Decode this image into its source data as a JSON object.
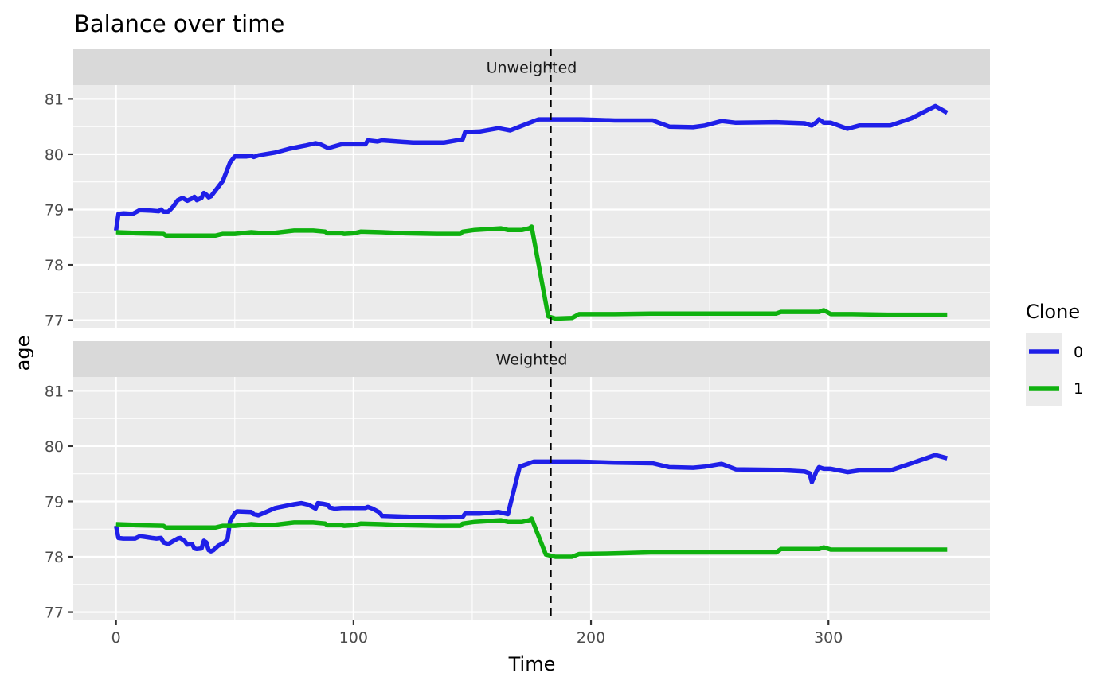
{
  "chart_data": {
    "type": "line",
    "title": "Balance over time",
    "xlabel": "Time",
    "ylabel": "age",
    "xlim": [
      -18,
      368
    ],
    "ylim": [
      76.85,
      81.25
    ],
    "x_ticks": [
      0,
      100,
      200,
      300
    ],
    "y_ticks": [
      77,
      78,
      79,
      80,
      81
    ],
    "grid": true,
    "vline": {
      "x": 183,
      "style": "dashed"
    },
    "legend": {
      "title": "Clone",
      "position": "right",
      "entries": [
        {
          "label": "0",
          "color": "#1f1fe8"
        },
        {
          "label": "1",
          "color": "#0fb10f"
        }
      ]
    },
    "panels": [
      {
        "label": "Unweighted",
        "series": [
          {
            "name": "0",
            "color": "#1f1fe8",
            "points": [
              [
                0,
                78.62
              ],
              [
                1,
                78.92
              ],
              [
                3,
                78.93
              ],
              [
                7,
                78.92
              ],
              [
                10,
                78.99
              ],
              [
                15,
                78.98
              ],
              [
                18,
                78.97
              ],
              [
                19,
                79.0
              ],
              [
                20,
                78.96
              ],
              [
                22,
                78.96
              ],
              [
                24,
                79.05
              ],
              [
                26,
                79.17
              ],
              [
                28,
                79.21
              ],
              [
                30,
                79.16
              ],
              [
                32,
                79.2
              ],
              [
                33,
                79.23
              ],
              [
                34,
                79.17
              ],
              [
                36,
                79.21
              ],
              [
                37,
                79.3
              ],
              [
                38,
                79.27
              ],
              [
                39,
                79.22
              ],
              [
                40,
                79.24
              ],
              [
                42,
                79.35
              ],
              [
                45,
                79.52
              ],
              [
                48,
                79.85
              ],
              [
                50,
                79.96
              ],
              [
                55,
                79.96
              ],
              [
                57,
                79.97
              ],
              [
                58,
                79.95
              ],
              [
                60,
                79.98
              ],
              [
                67,
                80.03
              ],
              [
                73,
                80.1
              ],
              [
                80,
                80.16
              ],
              [
                84,
                80.2
              ],
              [
                86,
                80.18
              ],
              [
                89,
                80.12
              ],
              [
                90,
                80.12
              ],
              [
                95,
                80.18
              ],
              [
                105,
                80.18
              ],
              [
                106,
                80.25
              ],
              [
                110,
                80.23
              ],
              [
                112,
                80.25
              ],
              [
                125,
                80.21
              ],
              [
                138,
                80.21
              ],
              [
                146,
                80.27
              ],
              [
                147,
                80.4
              ],
              [
                153,
                80.41
              ],
              [
                161,
                80.47
              ],
              [
                166,
                80.43
              ],
              [
                170,
                80.5
              ],
              [
                176,
                80.6
              ],
              [
                178,
                80.63
              ],
              [
                183,
                80.63
              ],
              [
                190,
                80.63
              ],
              [
                196,
                80.63
              ],
              [
                210,
                80.61
              ],
              [
                226,
                80.61
              ],
              [
                233,
                80.5
              ],
              [
                243,
                80.49
              ],
              [
                248,
                80.52
              ],
              [
                255,
                80.6
              ],
              [
                261,
                80.57
              ],
              [
                278,
                80.58
              ],
              [
                290,
                80.56
              ],
              [
                292,
                80.53
              ],
              [
                293,
                80.52
              ],
              [
                295,
                80.58
              ],
              [
                296,
                80.63
              ],
              [
                298,
                80.57
              ],
              [
                301,
                80.57
              ],
              [
                308,
                80.46
              ],
              [
                313,
                80.52
              ],
              [
                326,
                80.52
              ],
              [
                335,
                80.65
              ],
              [
                345,
                80.87
              ],
              [
                350,
                80.75
              ]
            ]
          },
          {
            "name": "1",
            "color": "#0fb10f",
            "points": [
              [
                0,
                78.59
              ],
              [
                7,
                78.58
              ],
              [
                8,
                78.57
              ],
              [
                20,
                78.56
              ],
              [
                21,
                78.53
              ],
              [
                42,
                78.53
              ],
              [
                45,
                78.56
              ],
              [
                50,
                78.56
              ],
              [
                57,
                78.59
              ],
              [
                60,
                78.58
              ],
              [
                67,
                78.58
              ],
              [
                75,
                78.62
              ],
              [
                83,
                78.62
              ],
              [
                88,
                78.6
              ],
              [
                89,
                78.57
              ],
              [
                95,
                78.57
              ],
              [
                96,
                78.56
              ],
              [
                100,
                78.57
              ],
              [
                103,
                78.6
              ],
              [
                112,
                78.59
              ],
              [
                122,
                78.57
              ],
              [
                135,
                78.56
              ],
              [
                145,
                78.56
              ],
              [
                146,
                78.6
              ],
              [
                151,
                78.63
              ],
              [
                162,
                78.66
              ],
              [
                165,
                78.63
              ],
              [
                171,
                78.63
              ],
              [
                174,
                78.66
              ],
              [
                175,
                78.69
              ],
              [
                182,
                77.07
              ],
              [
                185,
                77.03
              ],
              [
                192,
                77.04
              ],
              [
                195,
                77.11
              ],
              [
                210,
                77.11
              ],
              [
                225,
                77.12
              ],
              [
                278,
                77.12
              ],
              [
                280,
                77.15
              ],
              [
                296,
                77.15
              ],
              [
                298,
                77.18
              ],
              [
                301,
                77.11
              ],
              [
                310,
                77.11
              ],
              [
                325,
                77.1
              ],
              [
                350,
                77.1
              ]
            ]
          }
        ]
      },
      {
        "label": "Weighted",
        "series": [
          {
            "name": "0",
            "color": "#1f1fe8",
            "points": [
              [
                0,
                78.56
              ],
              [
                1,
                78.34
              ],
              [
                3,
                78.33
              ],
              [
                8,
                78.33
              ],
              [
                10,
                78.37
              ],
              [
                12,
                78.36
              ],
              [
                15,
                78.34
              ],
              [
                17,
                78.33
              ],
              [
                19,
                78.34
              ],
              [
                20,
                78.26
              ],
              [
                22,
                78.23
              ],
              [
                24,
                78.28
              ],
              [
                26,
                78.33
              ],
              [
                27,
                78.34
              ],
              [
                29,
                78.28
              ],
              [
                30,
                78.22
              ],
              [
                32,
                78.23
              ],
              [
                33,
                78.15
              ],
              [
                34,
                78.14
              ],
              [
                36,
                78.15
              ],
              [
                37,
                78.29
              ],
              [
                38,
                78.26
              ],
              [
                39,
                78.12
              ],
              [
                40,
                78.1
              ],
              [
                41,
                78.12
              ],
              [
                43,
                78.2
              ],
              [
                45,
                78.24
              ],
              [
                46,
                78.27
              ],
              [
                47,
                78.33
              ],
              [
                48,
                78.64
              ],
              [
                50,
                78.79
              ],
              [
                51,
                78.82
              ],
              [
                57,
                78.81
              ],
              [
                58,
                78.77
              ],
              [
                60,
                78.75
              ],
              [
                67,
                78.88
              ],
              [
                75,
                78.95
              ],
              [
                78,
                78.97
              ],
              [
                81,
                78.94
              ],
              [
                84,
                78.87
              ],
              [
                85,
                78.97
              ],
              [
                87,
                78.96
              ],
              [
                89,
                78.94
              ],
              [
                90,
                78.89
              ],
              [
                92,
                78.87
              ],
              [
                95,
                78.88
              ],
              [
                105,
                78.88
              ],
              [
                106,
                78.9
              ],
              [
                108,
                78.87
              ],
              [
                111,
                78.8
              ],
              [
                112,
                78.74
              ],
              [
                125,
                78.72
              ],
              [
                138,
                78.71
              ],
              [
                146,
                78.72
              ],
              [
                147,
                78.78
              ],
              [
                153,
                78.78
              ],
              [
                161,
                78.81
              ],
              [
                165,
                78.77
              ],
              [
                170,
                79.63
              ],
              [
                176,
                79.72
              ],
              [
                183,
                79.72
              ],
              [
                195,
                79.72
              ],
              [
                210,
                79.7
              ],
              [
                226,
                79.69
              ],
              [
                233,
                79.62
              ],
              [
                243,
                79.61
              ],
              [
                248,
                79.63
              ],
              [
                255,
                79.68
              ],
              [
                261,
                79.58
              ],
              [
                278,
                79.57
              ],
              [
                290,
                79.54
              ],
              [
                292,
                79.51
              ],
              [
                293,
                79.35
              ],
              [
                295,
                79.55
              ],
              [
                296,
                79.62
              ],
              [
                298,
                79.59
              ],
              [
                301,
                79.59
              ],
              [
                308,
                79.53
              ],
              [
                313,
                79.56
              ],
              [
                326,
                79.56
              ],
              [
                335,
                79.69
              ],
              [
                345,
                79.84
              ],
              [
                350,
                79.78
              ]
            ]
          },
          {
            "name": "1",
            "color": "#0fb10f",
            "points": [
              [
                0,
                78.59
              ],
              [
                7,
                78.58
              ],
              [
                8,
                78.57
              ],
              [
                20,
                78.56
              ],
              [
                21,
                78.53
              ],
              [
                42,
                78.53
              ],
              [
                45,
                78.56
              ],
              [
                50,
                78.56
              ],
              [
                57,
                78.59
              ],
              [
                60,
                78.58
              ],
              [
                67,
                78.58
              ],
              [
                75,
                78.62
              ],
              [
                83,
                78.62
              ],
              [
                88,
                78.6
              ],
              [
                89,
                78.57
              ],
              [
                95,
                78.57
              ],
              [
                96,
                78.56
              ],
              [
                100,
                78.57
              ],
              [
                103,
                78.6
              ],
              [
                112,
                78.59
              ],
              [
                122,
                78.57
              ],
              [
                135,
                78.56
              ],
              [
                145,
                78.56
              ],
              [
                146,
                78.6
              ],
              [
                151,
                78.63
              ],
              [
                162,
                78.66
              ],
              [
                165,
                78.63
              ],
              [
                171,
                78.63
              ],
              [
                174,
                78.66
              ],
              [
                175,
                78.69
              ],
              [
                181,
                78.04
              ],
              [
                185,
                78.0
              ],
              [
                192,
                78.0
              ],
              [
                195,
                78.05
              ],
              [
                210,
                78.06
              ],
              [
                225,
                78.08
              ],
              [
                278,
                78.08
              ],
              [
                280,
                78.14
              ],
              [
                296,
                78.14
              ],
              [
                298,
                78.17
              ],
              [
                301,
                78.13
              ],
              [
                310,
                78.13
              ],
              [
                325,
                78.13
              ],
              [
                350,
                78.13
              ]
            ]
          }
        ]
      }
    ]
  }
}
